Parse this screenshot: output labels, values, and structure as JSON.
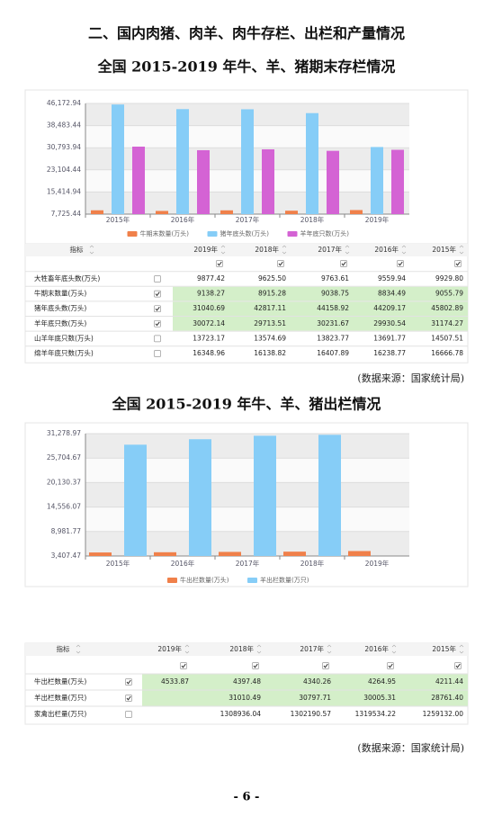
{
  "heading": "二、国内肉猪、肉羊、肉牛存栏、出栏和产量情况",
  "chart_data": [
    {
      "type": "bar",
      "title": "全国 2015-2019 年牛、羊、猪期末存栏情况",
      "categories": [
        "2015年",
        "2016年",
        "2017年",
        "2018年",
        "2019年"
      ],
      "series": [
        {
          "name": "牛期末数量(万头)",
          "color": "#f0804a",
          "values": [
            9055.79,
            8834.49,
            9038.75,
            8915.28,
            9138.27
          ]
        },
        {
          "name": "猪年底头数(万头)",
          "color": "#86cdf7",
          "values": [
            45802.89,
            44209.17,
            44158.92,
            42817.11,
            31040.69
          ]
        },
        {
          "name": "羊年底只数(万头)",
          "color": "#d463d4",
          "values": [
            31174.27,
            29930.54,
            30231.67,
            29713.51,
            30072.14
          ]
        }
      ],
      "ylim": [
        7725.44,
        46172.94
      ],
      "yticks": [
        {
          "value": 7725.44,
          "label": "7,725.44"
        },
        {
          "value": 15414.94,
          "label": "15,414.94"
        },
        {
          "value": 23104.44,
          "label": "23,104.44"
        },
        {
          "value": 30793.94,
          "label": "30,793.94"
        },
        {
          "value": 38483.44,
          "label": "38,483.44"
        },
        {
          "value": 46172.94,
          "label": "46,172.94"
        }
      ],
      "grid": true,
      "legend": "bottom"
    },
    {
      "type": "bar",
      "title": "全国 2015-2019 年牛、羊、猪出栏情况",
      "categories": [
        "2015年",
        "2016年",
        "2017年",
        "2018年",
        "2019年"
      ],
      "series": [
        {
          "name": "牛出栏数量(万头)",
          "color": "#f0804a",
          "values": [
            4211.44,
            4264.95,
            4340.26,
            4397.48,
            4533.87
          ]
        },
        {
          "name": "羊出栏数量(万只)",
          "color": "#86cdf7",
          "values": [
            28761.4,
            30005.31,
            30797.71,
            31010.49,
            null
          ]
        }
      ],
      "ylim": [
        3407.47,
        31278.97
      ],
      "yticks": [
        {
          "value": 3407.47,
          "label": "3,407.47"
        },
        {
          "value": 8981.77,
          "label": "8,981.77"
        },
        {
          "value": 14556.07,
          "label": "14,556.07"
        },
        {
          "value": 20130.37,
          "label": "20,130.37"
        },
        {
          "value": 25704.67,
          "label": "25,704.67"
        },
        {
          "value": 31278.97,
          "label": "31,278.97"
        }
      ],
      "grid": true,
      "legend": "bottom"
    }
  ],
  "tables": [
    {
      "header": [
        "指标",
        "2019年",
        "2018年",
        "2017年",
        "2016年",
        "2015年"
      ],
      "rows": [
        {
          "label": "大牲畜年底头数(万头)",
          "checked": false,
          "cells": [
            "9877.42",
            "9625.50",
            "9763.61",
            "9559.94",
            "9929.80"
          ]
        },
        {
          "label": "牛期末数量(万头)",
          "checked": true,
          "cells": [
            "9138.27",
            "8915.28",
            "9038.75",
            "8834.49",
            "9055.79"
          ]
        },
        {
          "label": "猪年底头数(万头)",
          "checked": true,
          "cells": [
            "31040.69",
            "42817.11",
            "44158.92",
            "44209.17",
            "45802.89"
          ]
        },
        {
          "label": "羊年底只数(万头)",
          "checked": true,
          "cells": [
            "30072.14",
            "29713.51",
            "30231.67",
            "29930.54",
            "31174.27"
          ]
        },
        {
          "label": "山羊年底只数(万头)",
          "checked": false,
          "cells": [
            "13723.17",
            "13574.69",
            "13823.77",
            "13691.77",
            "14507.51"
          ]
        },
        {
          "label": "绵羊年底只数(万头)",
          "checked": false,
          "cells": [
            "16348.96",
            "16138.82",
            "16407.89",
            "16238.77",
            "16666.78"
          ]
        }
      ]
    },
    {
      "header": [
        "指标",
        "2019年",
        "2018年",
        "2017年",
        "2016年",
        "2015年"
      ],
      "rows": [
        {
          "label": "牛出栏数量(万头)",
          "checked": true,
          "cells": [
            "4533.87",
            "4397.48",
            "4340.26",
            "4264.95",
            "4211.44"
          ]
        },
        {
          "label": "羊出栏数量(万只)",
          "checked": true,
          "cells": [
            null,
            "31010.49",
            "30797.71",
            "30005.31",
            "28761.40"
          ]
        },
        {
          "label": "家禽出栏量(万只)",
          "checked": false,
          "cells": [
            null,
            "1308936.04",
            "1302190.57",
            "1319534.22",
            "1259132.00"
          ]
        }
      ]
    }
  ],
  "sources": [
    "(数据来源：国家统计局)",
    "(数据来源：国家统计局)"
  ],
  "page_number": "- 6 -"
}
